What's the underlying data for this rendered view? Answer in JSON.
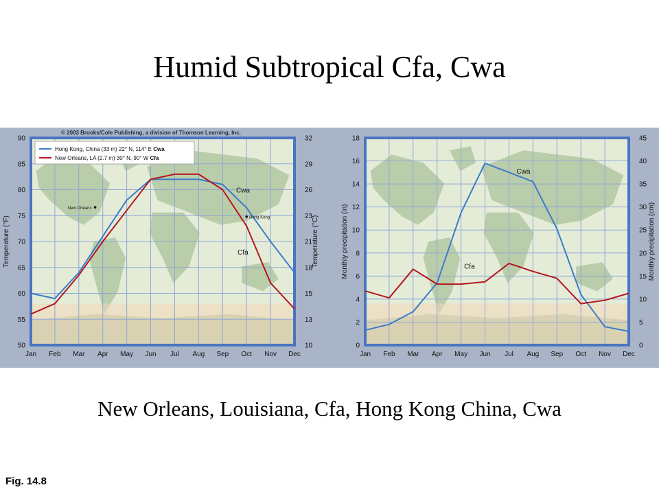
{
  "slide": {
    "title": "Humid Subtropical Cfa, Cwa",
    "caption": "New Orleans, Louisiana, Cfa,  Hong Kong China, Cwa",
    "fig_label": "Fig. 14.8"
  },
  "copyright": "© 2003 Brooks/Cole Publishing, a division of Thomson Learning, Inc.",
  "colors": {
    "panel_bg": "#a9b4c8",
    "frame": "#4a74c2",
    "grid": "#8ea6d6",
    "plot_bg": "#e4ecd8",
    "land": "#b3c8a3",
    "hong_kong": "#3a7cc8",
    "new_orleans": "#b4161f"
  },
  "legend": [
    {
      "color": "#3a7cc8",
      "text": "Hong Kong, China (33 m) 22° N, 114° E ",
      "code": "Cwa"
    },
    {
      "color": "#b4161f",
      "text": "New Orleans, LA (2.7 m) 30° N, 90° W ",
      "code": "Cfa"
    }
  ],
  "map_labels": {
    "new_orleans": "New Orleans",
    "hong_kong": "Hong Kong"
  },
  "chart_data": [
    {
      "type": "line",
      "categories": [
        "Jan",
        "Feb",
        "Mar",
        "Apr",
        "May",
        "Jun",
        "Jul",
        "Aug",
        "Sep",
        "Oct",
        "Nov",
        "Dec"
      ],
      "ylabel": "Temperature (°F)",
      "ylabel_right": "Temperature (°C)",
      "ylim": [
        50,
        90
      ],
      "yticks": [
        50,
        55,
        60,
        65,
        70,
        75,
        80,
        85,
        90
      ],
      "yticks_right": [
        10,
        13,
        15,
        18,
        21,
        23,
        26,
        29,
        32
      ],
      "grid": true,
      "series": [
        {
          "name": "Cwa",
          "color": "#3a7cc8",
          "values": [
            60,
            59,
            64,
            71,
            78,
            82,
            82,
            82,
            81,
            76.5,
            70,
            64
          ]
        },
        {
          "name": "Cfa",
          "color": "#b4161f",
          "values": [
            56,
            58,
            63.5,
            70,
            76,
            82,
            83,
            83,
            80,
            73,
            62,
            57
          ]
        }
      ],
      "series_labels": [
        {
          "text": "Cwa",
          "x": 8.85,
          "y": 79.5
        },
        {
          "text": "Cfa",
          "x": 8.85,
          "y": 67.5
        }
      ]
    },
    {
      "type": "line",
      "categories": [
        "Jan",
        "Feb",
        "Mar",
        "Apr",
        "May",
        "Jun",
        "Jul",
        "Aug",
        "Sep",
        "Oct",
        "Nov",
        "Dec"
      ],
      "ylabel": "Monthly precipitation (in)",
      "ylabel_right": "Monthly precipitation (cm)",
      "ylim": [
        0,
        18
      ],
      "yticks": [
        0,
        2,
        4,
        6,
        8,
        10,
        12,
        14,
        16,
        18
      ],
      "yticks_right": [
        0,
        5,
        10,
        15,
        20,
        25,
        30,
        35,
        40,
        45
      ],
      "grid": true,
      "series": [
        {
          "name": "Cwa",
          "color": "#3a7cc8",
          "values": [
            1.3,
            1.8,
            2.9,
            5.4,
            11.5,
            15.8,
            15,
            14.2,
            10.1,
            4.4,
            1.6,
            1.2
          ]
        },
        {
          "name": "Cfa",
          "color": "#b4161f",
          "values": [
            4.7,
            4.1,
            6.6,
            5.3,
            5.3,
            5.5,
            7.1,
            6.4,
            5.8,
            3.6,
            3.9,
            4.5
          ]
        }
      ],
      "series_labels": [
        {
          "text": "Cwa",
          "x": 6.6,
          "y": 14.9
        },
        {
          "text": "Cfa",
          "x": 4.35,
          "y": 6.65
        }
      ]
    }
  ]
}
